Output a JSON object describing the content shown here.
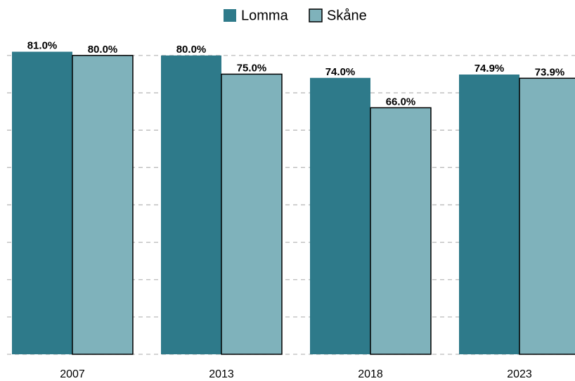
{
  "chart_data": {
    "type": "bar",
    "categories": [
      "2007",
      "2013",
      "2018",
      "2023"
    ],
    "series": [
      {
        "name": "Lomma",
        "color": "#2e7a8a",
        "values": [
          81.0,
          80.0,
          74.0,
          74.9
        ],
        "value_labels": [
          "81.0%",
          "80.0%",
          "74.0%",
          "74.9%"
        ]
      },
      {
        "name": "Skåne",
        "color": "#7fb2bb",
        "values": [
          80.0,
          75.0,
          66.0,
          73.9
        ],
        "value_labels": [
          "80.0%",
          "75.0%",
          "66.0%",
          "73.9%"
        ]
      }
    ],
    "ylim": [
      0,
      84.5
    ],
    "yticks": [
      0,
      10,
      20,
      30,
      40,
      50,
      60,
      70,
      80
    ],
    "grid": true,
    "legend": "top"
  }
}
